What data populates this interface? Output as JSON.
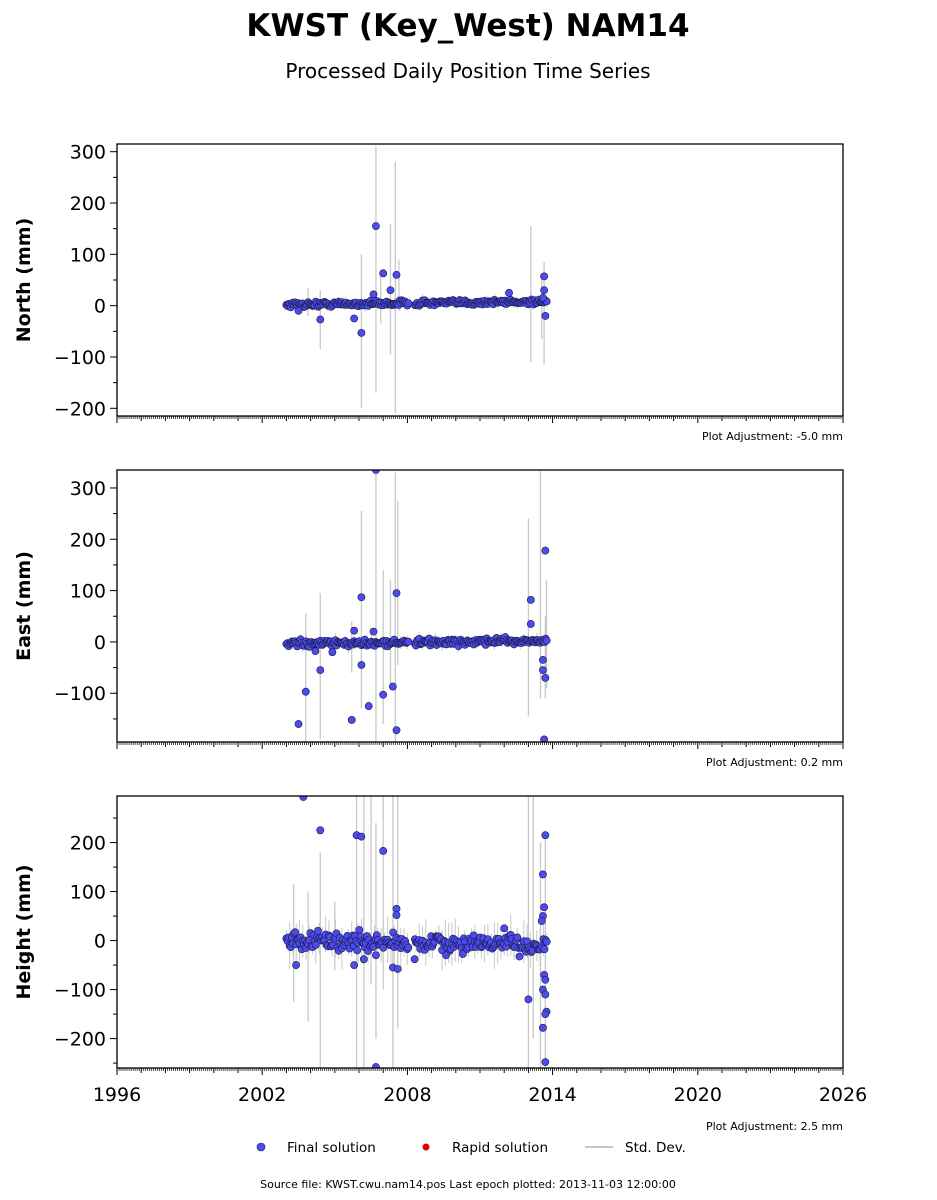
{
  "title": "KWST (Key_West) NAM14",
  "subtitle": "Processed Daily Position Time Series",
  "legend": {
    "final": "Final solution",
    "rapid": "Rapid solution",
    "stddev": "Std. Dev."
  },
  "footer": "Source file: KWST.cwu.nam14.pos  Last epoch plotted: 2013-11-03 12:00:00",
  "colors": {
    "final": "#4b4bf0",
    "rapid": "#e00000",
    "stddev": "#c8c8c8",
    "edge": "#1a1a40"
  },
  "chart_data": {
    "type": "scatter",
    "x_axis": {
      "range": [
        1996,
        2026
      ],
      "ticks": [
        "1996",
        "2002",
        "2008",
        "2014",
        "2020",
        "2026"
      ]
    },
    "panels": [
      {
        "ylabel": "North (mm)",
        "ylim": [
          -215,
          315
        ],
        "yticks": [
          "300",
          "200",
          "100",
          "0",
          "−100",
          "−200"
        ],
        "ytick_values": [
          300,
          200,
          100,
          0,
          -100,
          -200
        ],
        "adjustment": "Plot Adjustment: -5.0 mm",
        "band": {
          "x_start": 2003.0,
          "x_end": 2013.8,
          "base": 2,
          "spread": 6,
          "trend": 6
        },
        "gap": [
          2008.05,
          2008.3
        ],
        "outliers": [
          [
            2006.7,
            155
          ],
          [
            2007.0,
            63
          ],
          [
            2007.55,
            60
          ],
          [
            2007.3,
            30
          ],
          [
            2005.8,
            -25
          ],
          [
            2006.1,
            -53
          ],
          [
            2004.4,
            -27
          ],
          [
            2003.5,
            -10
          ],
          [
            2012.2,
            25
          ],
          [
            2013.65,
            57
          ],
          [
            2013.65,
            30
          ],
          [
            2013.7,
            -20
          ],
          [
            2013.6,
            15
          ],
          [
            2006.6,
            22
          ]
        ],
        "errorbars": [
          [
            2006.1,
            -200,
            100
          ],
          [
            2006.7,
            -170,
            310
          ],
          [
            2007.3,
            -95,
            160
          ],
          [
            2007.5,
            -210,
            280
          ],
          [
            2007.65,
            -10,
            90
          ],
          [
            2004.4,
            -85,
            30
          ],
          [
            2003.9,
            -20,
            35
          ],
          [
            2013.1,
            -110,
            155
          ],
          [
            2013.65,
            -115,
            85
          ],
          [
            2013.55,
            -65,
            60
          ],
          [
            2006.9,
            -35,
            70
          ]
        ]
      },
      {
        "ylabel": "East (mm)",
        "ylim": [
          -195,
          335
        ],
        "yticks": [
          "300",
          "200",
          "100",
          "0",
          "−100"
        ],
        "ytick_values": [
          300,
          200,
          100,
          0,
          -100
        ],
        "adjustment": "Plot Adjustment: 0.2 mm",
        "band": {
          "x_start": 2003.0,
          "x_end": 2013.8,
          "base": -4,
          "spread": 7,
          "trend": 6
        },
        "gap": [
          2008.05,
          2008.3
        ],
        "outliers": [
          [
            2006.7,
            335
          ],
          [
            2007.55,
            95
          ],
          [
            2006.1,
            87
          ],
          [
            2005.8,
            22
          ],
          [
            2006.6,
            20
          ],
          [
            2013.1,
            82
          ],
          [
            2013.1,
            35
          ],
          [
            2013.7,
            178
          ],
          [
            2003.5,
            -160
          ],
          [
            2003.8,
            -97
          ],
          [
            2004.4,
            -55
          ],
          [
            2005.7,
            -152
          ],
          [
            2006.4,
            -125
          ],
          [
            2007.0,
            -103
          ],
          [
            2007.4,
            -87
          ],
          [
            2007.55,
            -172
          ],
          [
            2006.1,
            -45
          ],
          [
            2013.7,
            -70
          ],
          [
            2013.6,
            -55
          ],
          [
            2013.65,
            -190
          ],
          [
            2013.6,
            -35
          ],
          [
            2004.2,
            -18
          ],
          [
            2004.9,
            -20
          ]
        ],
        "errorbars": [
          [
            2006.1,
            -130,
            255
          ],
          [
            2006.7,
            -200,
            335
          ],
          [
            2007.5,
            -200,
            330
          ],
          [
            2007.6,
            -45,
            275
          ],
          [
            2003.8,
            -195,
            55
          ],
          [
            2004.4,
            -190,
            95
          ],
          [
            2005.7,
            -60,
            40
          ],
          [
            2007.0,
            -160,
            140
          ],
          [
            2007.3,
            -90,
            120
          ],
          [
            2013.0,
            -145,
            240
          ],
          [
            2013.5,
            -110,
            335
          ],
          [
            2013.7,
            -110,
            50
          ],
          [
            2013.75,
            -90,
            120
          ]
        ]
      },
      {
        "ylabel": "Height (mm)",
        "ylim": [
          -260,
          295
        ],
        "yticks": [
          "200",
          "100",
          "0",
          "−100",
          "−200"
        ],
        "ytick_values": [
          200,
          100,
          0,
          -100,
          -200
        ],
        "adjustment": "Plot Adjustment: 2.5 mm",
        "band": {
          "x_start": 2003.0,
          "x_end": 2013.8,
          "base": 0,
          "spread": 22,
          "trend": -10
        },
        "gap": [
          2008.05,
          2008.3
        ],
        "outliers": [
          [
            2003.7,
            293
          ],
          [
            2004.4,
            225
          ],
          [
            2005.9,
            215
          ],
          [
            2006.1,
            212
          ],
          [
            2007.0,
            183
          ],
          [
            2007.55,
            65
          ],
          [
            2007.55,
            52
          ],
          [
            2003.4,
            -50
          ],
          [
            2005.8,
            -50
          ],
          [
            2006.2,
            -38
          ],
          [
            2006.7,
            -30
          ],
          [
            2007.4,
            -55
          ],
          [
            2007.6,
            -58
          ],
          [
            2008.3,
            -38
          ],
          [
            2009.6,
            -30
          ],
          [
            2006.7,
            -258
          ],
          [
            2013.0,
            -120
          ],
          [
            2013.7,
            215
          ],
          [
            2013.6,
            135
          ],
          [
            2013.65,
            68
          ],
          [
            2013.6,
            50
          ],
          [
            2013.55,
            40
          ],
          [
            2013.65,
            -70
          ],
          [
            2013.7,
            -80
          ],
          [
            2013.6,
            -100
          ],
          [
            2013.7,
            -110
          ],
          [
            2013.75,
            -145
          ],
          [
            2013.7,
            -150
          ],
          [
            2013.6,
            -178
          ],
          [
            2013.7,
            -248
          ],
          [
            2012.0,
            25
          ]
        ],
        "errorbars": [
          [
            2003.3,
            -125,
            115
          ],
          [
            2003.9,
            -165,
            100
          ],
          [
            2004.4,
            -260,
            180
          ],
          [
            2005.0,
            -60,
            80
          ],
          [
            2005.9,
            -260,
            295
          ],
          [
            2006.2,
            -260,
            295
          ],
          [
            2006.5,
            -90,
            295
          ],
          [
            2006.7,
            -200,
            240
          ],
          [
            2007.0,
            -100,
            295
          ],
          [
            2007.4,
            -260,
            295
          ],
          [
            2007.6,
            -180,
            295
          ],
          [
            2013.0,
            -260,
            295
          ],
          [
            2013.2,
            -200,
            295
          ],
          [
            2013.5,
            -260,
            200
          ],
          [
            2013.7,
            -260,
            210
          ]
        ]
      }
    ]
  }
}
